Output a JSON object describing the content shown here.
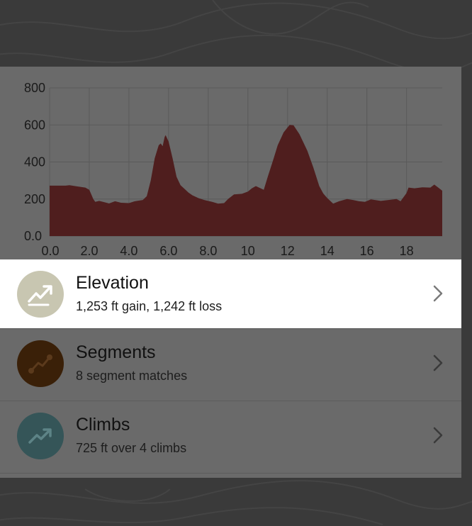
{
  "colors": {
    "overlay_bg": "#3a3a3a",
    "panel_bg": "#6a6a6a",
    "elevation_fill": "#4f1e1e",
    "elevation_icon_bg": "#c8c6b1",
    "segments_icon_bg": "#3a2008",
    "climbs_icon_bg": "#355558",
    "highlight_row_bg": "#ffffff"
  },
  "chart_data": {
    "type": "area",
    "title": "",
    "xlabel": "",
    "ylabel": "",
    "xlim": [
      0,
      19.8
    ],
    "ylim": [
      0,
      800
    ],
    "grid": true,
    "x_ticks": [
      0,
      2,
      4,
      6,
      8,
      10,
      12,
      14,
      16,
      18
    ],
    "x_tick_labels": [
      "0.0",
      "2.0",
      "4.0",
      "6.0",
      "8.0",
      "10",
      "12",
      "14",
      "16",
      "18"
    ],
    "y_ticks": [
      0,
      200,
      400,
      600,
      800
    ],
    "y_tick_labels": [
      "0.0",
      "200",
      "400",
      "600",
      "800"
    ],
    "series": [
      {
        "points": [
          [
            0.0,
            272
          ],
          [
            0.8,
            272
          ],
          [
            1.0,
            275
          ],
          [
            1.4,
            268
          ],
          [
            1.8,
            262
          ],
          [
            2.0,
            250
          ],
          [
            2.2,
            200
          ],
          [
            2.3,
            185
          ],
          [
            2.5,
            190
          ],
          [
            2.8,
            182
          ],
          [
            3.0,
            176
          ],
          [
            3.3,
            188
          ],
          [
            3.6,
            180
          ],
          [
            4.0,
            178
          ],
          [
            4.3,
            188
          ],
          [
            4.7,
            195
          ],
          [
            4.9,
            215
          ],
          [
            5.1,
            300
          ],
          [
            5.3,
            420
          ],
          [
            5.5,
            490
          ],
          [
            5.6,
            500
          ],
          [
            5.7,
            485
          ],
          [
            5.8,
            535
          ],
          [
            5.85,
            545
          ],
          [
            6.0,
            510
          ],
          [
            6.2,
            420
          ],
          [
            6.4,
            320
          ],
          [
            6.6,
            275
          ],
          [
            6.8,
            255
          ],
          [
            7.0,
            235
          ],
          [
            7.2,
            220
          ],
          [
            7.5,
            205
          ],
          [
            7.8,
            195
          ],
          [
            8.2,
            185
          ],
          [
            8.5,
            175
          ],
          [
            8.8,
            178
          ],
          [
            9.0,
            200
          ],
          [
            9.3,
            225
          ],
          [
            9.7,
            228
          ],
          [
            10.0,
            240
          ],
          [
            10.2,
            258
          ],
          [
            10.4,
            270
          ],
          [
            10.6,
            260
          ],
          [
            10.8,
            250
          ],
          [
            11.0,
            320
          ],
          [
            11.3,
            420
          ],
          [
            11.5,
            490
          ],
          [
            11.8,
            560
          ],
          [
            12.1,
            600
          ],
          [
            12.3,
            598
          ],
          [
            12.6,
            550
          ],
          [
            13.0,
            460
          ],
          [
            13.3,
            370
          ],
          [
            13.6,
            270
          ],
          [
            13.8,
            230
          ],
          [
            14.0,
            205
          ],
          [
            14.3,
            175
          ],
          [
            14.6,
            188
          ],
          [
            15.0,
            200
          ],
          [
            15.3,
            195
          ],
          [
            15.6,
            188
          ],
          [
            15.9,
            185
          ],
          [
            16.2,
            198
          ],
          [
            16.7,
            190
          ],
          [
            17.2,
            196
          ],
          [
            17.5,
            200
          ],
          [
            17.7,
            188
          ],
          [
            18.0,
            232
          ],
          [
            18.1,
            262
          ],
          [
            18.4,
            258
          ],
          [
            18.8,
            263
          ],
          [
            19.2,
            262
          ],
          [
            19.4,
            278
          ],
          [
            19.6,
            262
          ],
          [
            19.8,
            245
          ]
        ]
      }
    ]
  },
  "rows": [
    {
      "title": "Elevation",
      "subtitle": "1,253 ft gain, 1,242 ft loss",
      "icon": "trending-up-icon",
      "highlighted": true
    },
    {
      "title": "Segments",
      "subtitle": "8 segment matches",
      "icon": "segment-icon",
      "highlighted": false
    },
    {
      "title": "Climbs",
      "subtitle": "725 ft over 4 climbs",
      "icon": "climb-icon",
      "highlighted": false
    }
  ]
}
